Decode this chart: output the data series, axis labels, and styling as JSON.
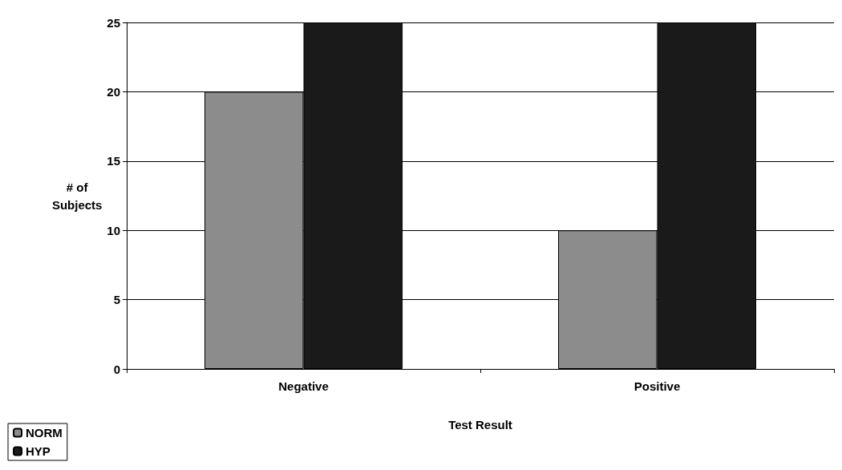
{
  "chart_data": {
    "type": "bar",
    "xlabel": "Test Result",
    "ylabel": "# of\nSubjects",
    "categories": [
      "Negative",
      "Positive"
    ],
    "series": [
      {
        "name": "NORM",
        "color": "#8c8c8c",
        "values": [
          20,
          10
        ]
      },
      {
        "name": "HYP",
        "color": "#1a1a1a",
        "values": [
          25,
          25
        ]
      }
    ],
    "ylim": [
      0,
      25
    ],
    "yticks": [
      0,
      5,
      10,
      15,
      20,
      25
    ],
    "grid": "y",
    "legend": "bottom left"
  }
}
